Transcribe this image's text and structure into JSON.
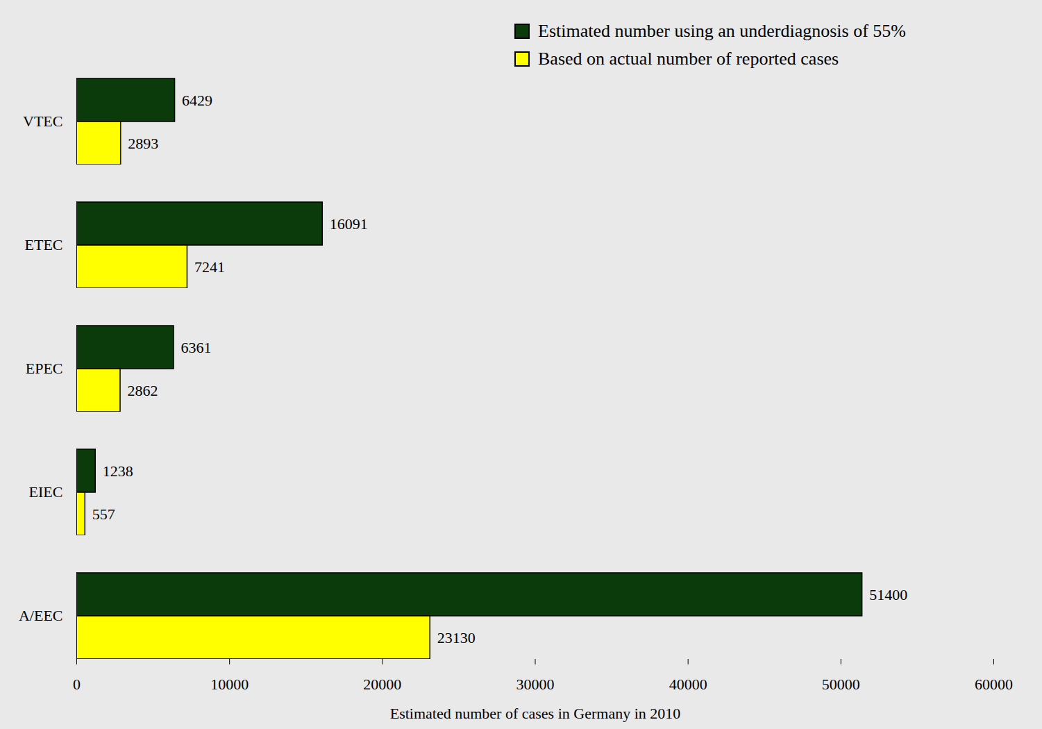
{
  "chart_data": {
    "type": "bar",
    "orientation": "horizontal",
    "categories": [
      "VTEC",
      "ETEC",
      "EPEC",
      "EIEC",
      "A/EEC"
    ],
    "series": [
      {
        "name": "Estimated number using an underdiagnosis of 55%",
        "color": "#0b3a0b",
        "values": [
          6429,
          16091,
          6361,
          1238,
          51400
        ]
      },
      {
        "name": "Based on actual number of reported cases",
        "color": "#ffff00",
        "values": [
          2893,
          7241,
          2862,
          557,
          23130
        ]
      }
    ],
    "xlabel": "Estimated number of cases in Germany in 2010",
    "xlim": [
      0,
      60000
    ],
    "xticks": [
      0,
      10000,
      20000,
      30000,
      40000,
      50000,
      60000
    ],
    "grid": false,
    "data_labels": true,
    "legend": "top-right"
  }
}
